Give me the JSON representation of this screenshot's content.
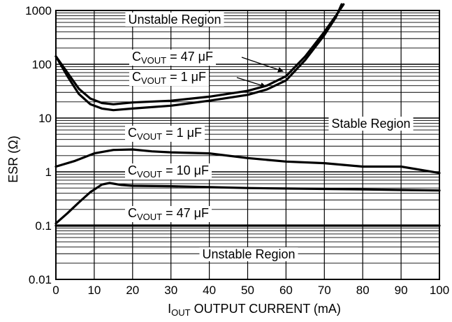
{
  "chart_data": {
    "type": "line",
    "xlabel": {
      "main": "I",
      "sub": "OUT",
      "rest": " OUTPUT CURRENT (mA)"
    },
    "ylabel": "ESR (Ω)",
    "x_ticks": [
      "0",
      "10",
      "20",
      "30",
      "40",
      "50",
      "60",
      "70",
      "80",
      "90",
      "100"
    ],
    "y_ticks": [
      "0.01",
      "0.1",
      "1",
      "10",
      "100",
      "1000"
    ],
    "xlim": [
      0,
      100
    ],
    "ylim": [
      0.01,
      1000
    ],
    "yscale": "log",
    "grid": true,
    "annotations": [
      {
        "id": "unstable-top",
        "text": "Unstable Region"
      },
      {
        "id": "c47-upper",
        "main": "C",
        "sub": "VOUT",
        "rest": " = 47 μF"
      },
      {
        "id": "c1-upper",
        "main": "C",
        "sub": "VOUT",
        "rest": " = 1 μF"
      },
      {
        "id": "c1-lower",
        "main": "C",
        "sub": "VOUT",
        "rest": " = 1 μF"
      },
      {
        "id": "stable",
        "text": "Stable Region"
      },
      {
        "id": "c10",
        "main": "C",
        "sub": "VOUT",
        "rest": " = 10 μF"
      },
      {
        "id": "c47-lower",
        "main": "C",
        "sub": "VOUT",
        "rest": " = 47 μF"
      },
      {
        "id": "unstable-bottom",
        "text": "Unstable Region"
      }
    ],
    "series": [
      {
        "role": "upper-47uF",
        "color": "#000000",
        "x": [
          0,
          3,
          6,
          9,
          12,
          15,
          20,
          30,
          40,
          50,
          55,
          60,
          65,
          70,
          73,
          75
        ],
        "y": [
          140,
          70,
          35,
          23,
          19,
          18,
          19.5,
          21,
          25,
          32,
          40,
          60,
          140,
          400,
          800,
          1300
        ]
      },
      {
        "role": "upper-1uF",
        "color": "#000000",
        "x": [
          0,
          3,
          6,
          9,
          12,
          15,
          20,
          30,
          40,
          50,
          55,
          60,
          65,
          70,
          73,
          74.5
        ],
        "y": [
          140,
          60,
          28,
          18,
          15,
          14,
          15,
          17,
          21,
          27,
          34,
          50,
          120,
          350,
          750,
          1300
        ]
      },
      {
        "role": "lower-1uF",
        "color": "#000000",
        "x": [
          0,
          5,
          10,
          15,
          20,
          25,
          30,
          40,
          50,
          60,
          70,
          80,
          90,
          100
        ],
        "y": [
          1.25,
          1.6,
          2.2,
          2.55,
          2.6,
          2.4,
          2.3,
          2.2,
          1.8,
          1.55,
          1.45,
          1.25,
          1.25,
          0.95
        ]
      },
      {
        "role": "10uF",
        "color": "#000000",
        "x": [
          0,
          3,
          6,
          9,
          12,
          14,
          17,
          20,
          30,
          40,
          50,
          60,
          70,
          80,
          90,
          100
        ],
        "y": [
          0.11,
          0.17,
          0.27,
          0.42,
          0.58,
          0.62,
          0.57,
          0.55,
          0.54,
          0.52,
          0.5,
          0.49,
          0.48,
          0.47,
          0.46,
          0.45
        ]
      },
      {
        "role": "lower-47uF",
        "color": "#000000",
        "x": [
          0,
          100
        ],
        "y": [
          0.1,
          0.1
        ]
      }
    ]
  }
}
